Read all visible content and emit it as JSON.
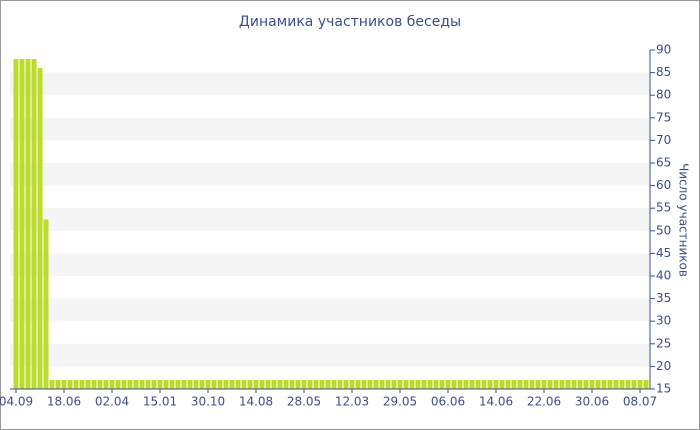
{
  "chart_data": {
    "type": "bar",
    "title": "Динамика участников беседы",
    "y_axis_label": "Число участников",
    "categories": [
      "04.09",
      null,
      null,
      null,
      null,
      null,
      null,
      null,
      "18.06",
      null,
      null,
      null,
      null,
      null,
      null,
      null,
      "02.04",
      null,
      null,
      null,
      null,
      null,
      null,
      null,
      "15.01",
      null,
      null,
      null,
      null,
      null,
      null,
      null,
      "30.10",
      null,
      null,
      null,
      null,
      null,
      null,
      null,
      "14.08",
      null,
      null,
      null,
      null,
      null,
      null,
      null,
      "28.05",
      null,
      null,
      null,
      null,
      null,
      null,
      null,
      "12.03",
      null,
      null,
      null,
      null,
      null,
      null,
      null,
      "29.05",
      null,
      null,
      null,
      null,
      null,
      null,
      null,
      "06.06",
      null,
      null,
      null,
      null,
      null,
      null,
      null,
      "14.06",
      null,
      null,
      null,
      null,
      null,
      null,
      null,
      "22.06",
      null,
      null,
      null,
      null,
      null,
      null,
      null,
      "30.06",
      null,
      null,
      null,
      null,
      null,
      null,
      null,
      "08.07",
      null
    ],
    "values": [
      88,
      88,
      88,
      88,
      86,
      52.5,
      17,
      17,
      17,
      17,
      17,
      17,
      17,
      17,
      17,
      17,
      17,
      17,
      17,
      17,
      17,
      17,
      17,
      17,
      17,
      17,
      17,
      17,
      17,
      17,
      17,
      17,
      17,
      17,
      17,
      17,
      17,
      17,
      17,
      17,
      17,
      17,
      17,
      17,
      17,
      17,
      17,
      17,
      17,
      17,
      17,
      17,
      17,
      17,
      17,
      17,
      17,
      17,
      17,
      17,
      17,
      17,
      17,
      17,
      17,
      17,
      17,
      17,
      17,
      17,
      17,
      17,
      17,
      17,
      17,
      17,
      17,
      17,
      17,
      17,
      17,
      17,
      17,
      17,
      17,
      17,
      17,
      17,
      17,
      17,
      17,
      17,
      17,
      17,
      17,
      17,
      17,
      17,
      17,
      17,
      17,
      17,
      17,
      17,
      17,
      17
    ],
    "color": "#bcdc2c",
    "ylim": [
      15,
      90
    ],
    "yticks": [
      15,
      20,
      25,
      30,
      35,
      40,
      45,
      50,
      55,
      60,
      65,
      70,
      75,
      80,
      85,
      90
    ],
    "y_axis_side": "right",
    "grid": "alternating-bands"
  }
}
